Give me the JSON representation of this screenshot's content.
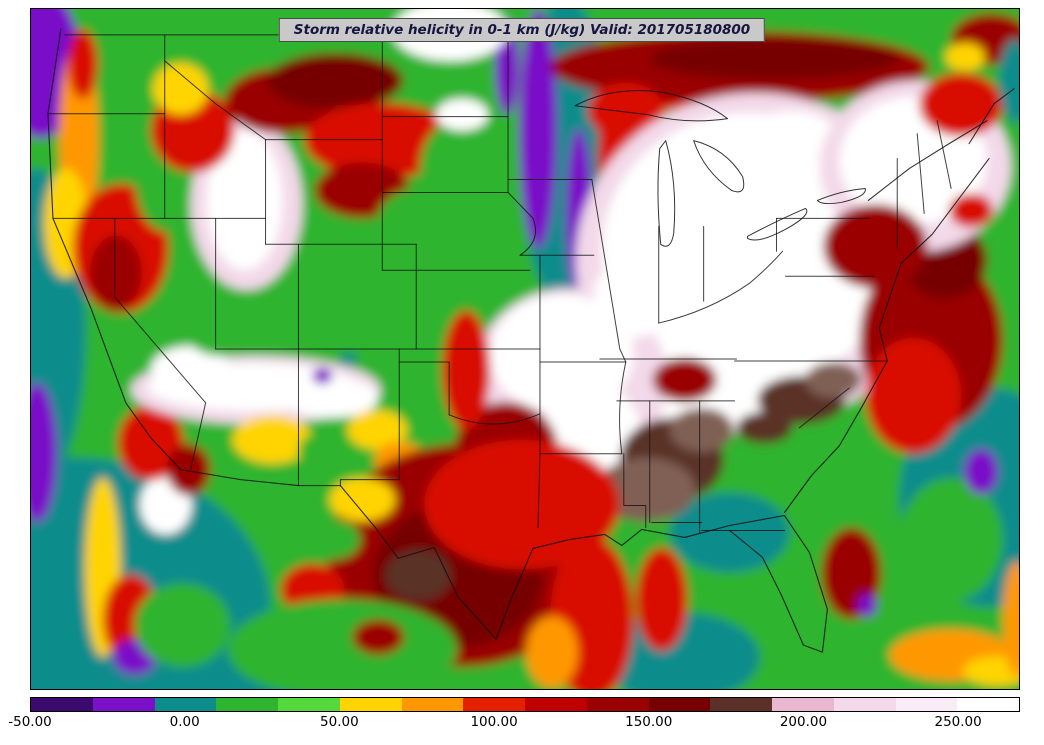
{
  "figure": {
    "title_box": {
      "text": "Storm relative helicity in 0-1 km (J/kg) Valid: 201705180800"
    }
  },
  "chart_data": {
    "type": "heatmap",
    "title": "Storm relative helicity in 0-1 km (J/kg)",
    "valid_label": "Valid: 201705180800",
    "variable": "Storm relative helicity in 0-1 km",
    "units": "J/kg",
    "region": "Continental United States with state boundaries, coastlines and Great Lakes",
    "colorbar": {
      "orientation": "horizontal",
      "range": [
        -50,
        270
      ],
      "tick_labels": [
        "-50.00",
        "0.00",
        "50.00",
        "100.00",
        "150.00",
        "200.00",
        "250.00"
      ],
      "ticks": [
        {
          "value": -50,
          "label": "-50.00"
        },
        {
          "value": 0,
          "label": "0.00"
        },
        {
          "value": 50,
          "label": "50.00"
        },
        {
          "value": 100,
          "label": "100.00"
        },
        {
          "value": 150,
          "label": "150.00"
        },
        {
          "value": 200,
          "label": "200.00"
        },
        {
          "value": 250,
          "label": "250.00"
        }
      ],
      "stops": [
        {
          "from": -50,
          "to": -30,
          "color": "#3c0a6e"
        },
        {
          "from": -30,
          "to": -10,
          "color": "#7a10c8"
        },
        {
          "from": -10,
          "to": 10,
          "color": "#0e8c8c"
        },
        {
          "from": 10,
          "to": 30,
          "color": "#2eb42e"
        },
        {
          "from": 30,
          "to": 50,
          "color": "#55d83c"
        },
        {
          "from": 50,
          "to": 70,
          "color": "#ffd400"
        },
        {
          "from": 70,
          "to": 90,
          "color": "#ff9800"
        },
        {
          "from": 90,
          "to": 110,
          "color": "#e42000"
        },
        {
          "from": 110,
          "to": 130,
          "color": "#c00000"
        },
        {
          "from": 130,
          "to": 150,
          "color": "#9a0000"
        },
        {
          "from": 150,
          "to": 170,
          "color": "#760000"
        },
        {
          "from": 170,
          "to": 190,
          "color": "#5a3028"
        },
        {
          "from": 190,
          "to": 210,
          "color": "#e9b7d0"
        },
        {
          "from": 210,
          "to": 230,
          "color": "#f3d9e9"
        },
        {
          "from": 230,
          "to": 250,
          "color": "#f9ecf6"
        },
        {
          "from": 250,
          "to": 270,
          "color": "#ffffff"
        }
      ]
    },
    "field_summary": [
      {
        "area": "Upper Midwest / Great Lakes / Ohio Valley",
        "estimated_value": "> 250 (white)"
      },
      {
        "area": "Kansas / Missouri center",
        "estimated_value": "> 250 (white) ringed by 150-190 (maroon/brown)"
      },
      {
        "area": "Texas / southern plains",
        "estimated_value": "110-170 (dark red to maroon)"
      },
      {
        "area": "Dakotas / Minnesota streaks",
        "estimated_value": "-50 to 0 (purple/teal bands)"
      },
      {
        "area": "Idaho and Colorado Rockies",
        "estimated_value": "> 250 (white patches)"
      },
      {
        "area": "Gulf of Mexico and Atlantic offshore",
        "estimated_value": "-10 to 30 (teal/green)"
      },
      {
        "area": "East coast band",
        "estimated_value": "90-170 (red to maroon)"
      }
    ]
  },
  "colors": {
    "page_background": "#ffffff",
    "title_box_background": "#c9c9c9",
    "boundary_line": "#111111",
    "axes_frame": "#000000"
  }
}
